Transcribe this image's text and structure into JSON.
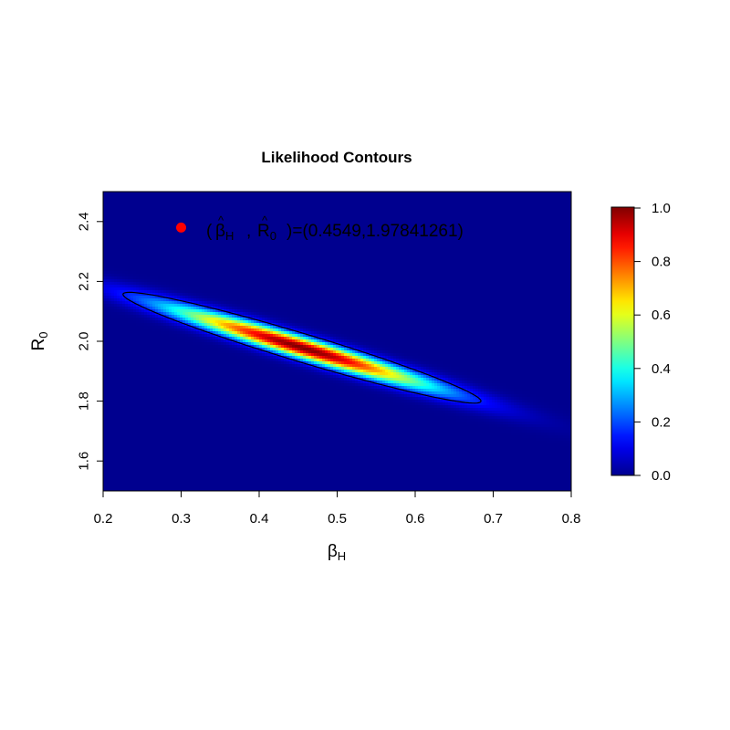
{
  "chart_data": {
    "type": "heatmap",
    "title": "Likelihood Contours",
    "xlabel": {
      "main": "β",
      "sub": "H"
    },
    "ylabel": {
      "main": "R",
      "sub": "0"
    },
    "xlim": [
      0.2,
      0.8
    ],
    "ylim": [
      1.5,
      2.5
    ],
    "x_ticks": [
      "0.2",
      "0.3",
      "0.4",
      "0.5",
      "0.6",
      "0.7",
      "0.8"
    ],
    "y_ticks": [
      "1.6",
      "1.8",
      "2.0",
      "2.2",
      "2.4"
    ],
    "colorbar": {
      "range": [
        0.0,
        1.0
      ],
      "ticks": [
        "0.0",
        "0.2",
        "0.4",
        "0.6",
        "0.8",
        "1.0"
      ],
      "colors": [
        "#00008F",
        "#0000FF",
        "#00FFFF",
        "#FFFF00",
        "#FF0000",
        "#800000"
      ]
    },
    "mle": {
      "beta_H": 0.4549,
      "R0": 1.97841261
    },
    "contour_level": 0.15,
    "annotation": {
      "x": 0.3,
      "y": 2.38,
      "marker_color": "#FF0000",
      "open": "(",
      "beta_main": "β",
      "beta_sub": "H",
      "comma": ",",
      "r_main": "R",
      "r_sub": "0",
      "hat": "^",
      "tail": ")=(0.4549,1.97841261)"
    }
  }
}
